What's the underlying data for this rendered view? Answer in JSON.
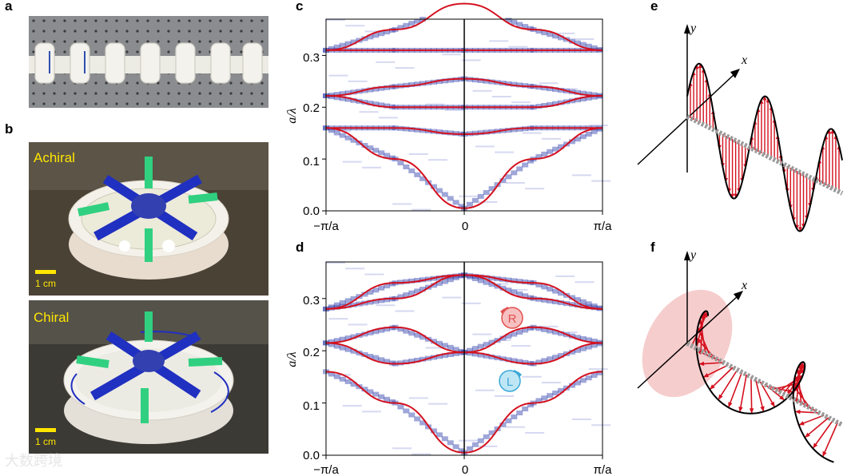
{
  "panels": {
    "a": "a",
    "b": "b",
    "c": "c",
    "d": "d",
    "e": "e",
    "f": "f"
  },
  "photos": {
    "achiral_label": "Achiral",
    "chiral_label": "Chiral",
    "scale_achiral": "1 cm",
    "scale_chiral": "1 cm"
  },
  "band_axes": {
    "ylabel": "a/λ",
    "ytick_labels": [
      "0.0",
      "0.1",
      "0.2",
      "0.3"
    ],
    "xtick_labels": [
      "−π/a",
      "0",
      "π/a"
    ]
  },
  "badges": {
    "right": "R",
    "left": "L"
  },
  "diagram_axes": {
    "e_y": "y",
    "e_x": "x",
    "f_y": "y",
    "f_x": "x"
  },
  "watermark": "大数跨境",
  "colors": {
    "band_line": "#d4101e",
    "density": "#2a3aa8",
    "badge_red": "#e05050",
    "badge_blue": "#3aa8d8",
    "yellow": "#ffe600"
  },
  "chart_data": [
    {
      "panel": "c",
      "type": "line",
      "x": [
        -1.0,
        -0.5,
        0.0,
        0.5,
        1.0
      ],
      "xtick_labels": [
        "−π/a",
        "0",
        "π/a"
      ],
      "ylabel": "a/λ",
      "ylim": [
        0.0,
        0.37
      ],
      "yticks": [
        0.0,
        0.1,
        0.2,
        0.3
      ],
      "series": [
        {
          "values": [
            0.16,
            0.1,
            0.005,
            0.1,
            0.16
          ]
        },
        {
          "values": [
            0.16,
            0.16,
            0.148,
            0.16,
            0.16
          ]
        },
        {
          "values": [
            0.222,
            0.2,
            0.2,
            0.2,
            0.222
          ]
        },
        {
          "values": [
            0.222,
            0.24,
            0.255,
            0.24,
            0.222
          ]
        },
        {
          "values": [
            0.31,
            0.31,
            0.31,
            0.31,
            0.31
          ]
        },
        {
          "values": [
            0.31,
            0.35,
            0.4,
            0.35,
            0.31
          ]
        }
      ]
    },
    {
      "panel": "d",
      "type": "line",
      "x": [
        -1.0,
        -0.5,
        0.0,
        0.5,
        1.0
      ],
      "xtick_labels": [
        "−π/a",
        "0",
        "π/a"
      ],
      "ylabel": "a/λ",
      "ylim": [
        0.0,
        0.37
      ],
      "yticks": [
        0.0,
        0.1,
        0.2,
        0.3
      ],
      "series": [
        {
          "values": [
            0.16,
            0.1,
            0.005,
            0.1,
            0.16
          ]
        },
        {
          "values": [
            0.215,
            0.175,
            0.197,
            0.175,
            0.215
          ]
        },
        {
          "values": [
            0.215,
            0.245,
            0.197,
            0.245,
            0.215
          ]
        },
        {
          "values": [
            0.28,
            0.3,
            0.345,
            0.3,
            0.28
          ]
        },
        {
          "values": [
            0.28,
            0.33,
            0.345,
            0.33,
            0.28
          ]
        }
      ]
    }
  ]
}
